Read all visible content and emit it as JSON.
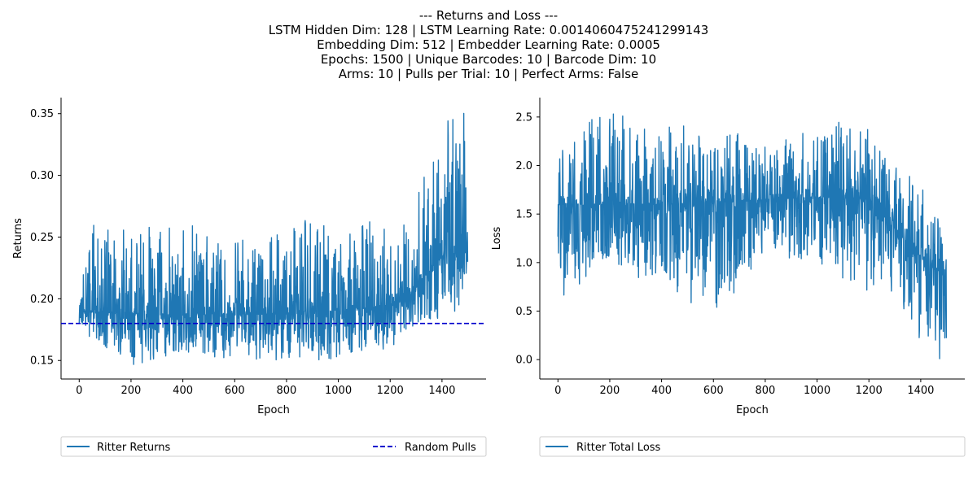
{
  "figure": {
    "title_lines": [
      "--- Returns and Loss ---",
      "LSTM Hidden Dim: 128 | LSTM Learning Rate: 0.0014060475241299143",
      "Embedding Dim: 512 | Embedder Learning Rate: 0.0005",
      "Epochs: 1500 | Unique Barcodes: 10 | Barcode Dim: 10",
      "Arms: 10 | Pulls per Trial: 10 | Perfect Arms: False"
    ]
  },
  "colors": {
    "series_returns": "#1f77b4",
    "series_loss": "#1f77b4",
    "random_pulls": "#0000cd",
    "axis": "#000000",
    "legend_border": "#cccccc"
  },
  "chart_data": [
    {
      "type": "line",
      "xlabel": "Epoch",
      "ylabel": "Returns",
      "xlim": [
        -70,
        1570
      ],
      "ylim": [
        0.135,
        0.363
      ],
      "xticks": [
        0,
        200,
        400,
        600,
        800,
        1000,
        1200,
        1400
      ],
      "yticks": [
        0.15,
        0.2,
        0.25,
        0.3,
        0.35
      ],
      "ytick_labels": [
        "0.15",
        "0.20",
        "0.25",
        "0.30",
        "0.35"
      ],
      "legend_location": "below",
      "series": [
        {
          "name": "Ritter Returns",
          "style": "solid",
          "x_start": 0,
          "x_end": 1499,
          "points": 1500,
          "approx_profile": [
            {
              "x": 0,
              "mean": 0.19,
              "low": 0.175,
              "high": 0.27
            },
            {
              "x": 200,
              "mean": 0.188,
              "low": 0.146,
              "high": 0.255
            },
            {
              "x": 400,
              "mean": 0.187,
              "low": 0.155,
              "high": 0.27
            },
            {
              "x": 600,
              "mean": 0.187,
              "low": 0.15,
              "high": 0.25
            },
            {
              "x": 800,
              "mean": 0.188,
              "low": 0.15,
              "high": 0.26
            },
            {
              "x": 1000,
              "mean": 0.19,
              "low": 0.15,
              "high": 0.27
            },
            {
              "x": 1200,
              "mean": 0.195,
              "low": 0.16,
              "high": 0.26
            },
            {
              "x": 1300,
              "mean": 0.21,
              "low": 0.18,
              "high": 0.29
            },
            {
              "x": 1400,
              "mean": 0.235,
              "low": 0.185,
              "high": 0.342
            },
            {
              "x": 1499,
              "mean": 0.245,
              "low": 0.19,
              "high": 0.353
            }
          ]
        },
        {
          "name": "Random Pulls",
          "style": "dashed",
          "value": 0.18
        }
      ]
    },
    {
      "type": "line",
      "xlabel": "Epoch",
      "ylabel": "Loss",
      "xlim": [
        -70,
        1570
      ],
      "ylim": [
        -0.2,
        2.7
      ],
      "xticks": [
        0,
        200,
        400,
        600,
        800,
        1000,
        1200,
        1400
      ],
      "yticks": [
        0.0,
        0.5,
        1.0,
        1.5,
        2.0,
        2.5
      ],
      "ytick_labels": [
        "0.0",
        "0.5",
        "1.0",
        "1.5",
        "2.0",
        "2.5"
      ],
      "legend_location": "below",
      "series": [
        {
          "name": "Ritter Total Loss",
          "style": "solid",
          "x_start": 0,
          "x_end": 1499,
          "points": 1500,
          "approx_profile": [
            {
              "x": 0,
              "mean": 1.6,
              "low": 0.5,
              "high": 2.15
            },
            {
              "x": 170,
              "mean": 1.6,
              "low": 1.0,
              "high": 2.57
            },
            {
              "x": 400,
              "mean": 1.6,
              "low": 0.7,
              "high": 2.4
            },
            {
              "x": 630,
              "mean": 1.62,
              "low": 0.47,
              "high": 2.42
            },
            {
              "x": 800,
              "mean": 1.65,
              "low": 1.1,
              "high": 2.2
            },
            {
              "x": 1050,
              "mean": 1.68,
              "low": 0.95,
              "high": 2.5
            },
            {
              "x": 1200,
              "mean": 1.65,
              "low": 0.6,
              "high": 2.42
            },
            {
              "x": 1300,
              "mean": 1.35,
              "low": 0.7,
              "high": 2.0
            },
            {
              "x": 1420,
              "mean": 1.0,
              "low": 0.05,
              "high": 1.8
            },
            {
              "x": 1499,
              "mean": 0.85,
              "low": -0.08,
              "high": 1.25
            }
          ]
        }
      ]
    }
  ]
}
